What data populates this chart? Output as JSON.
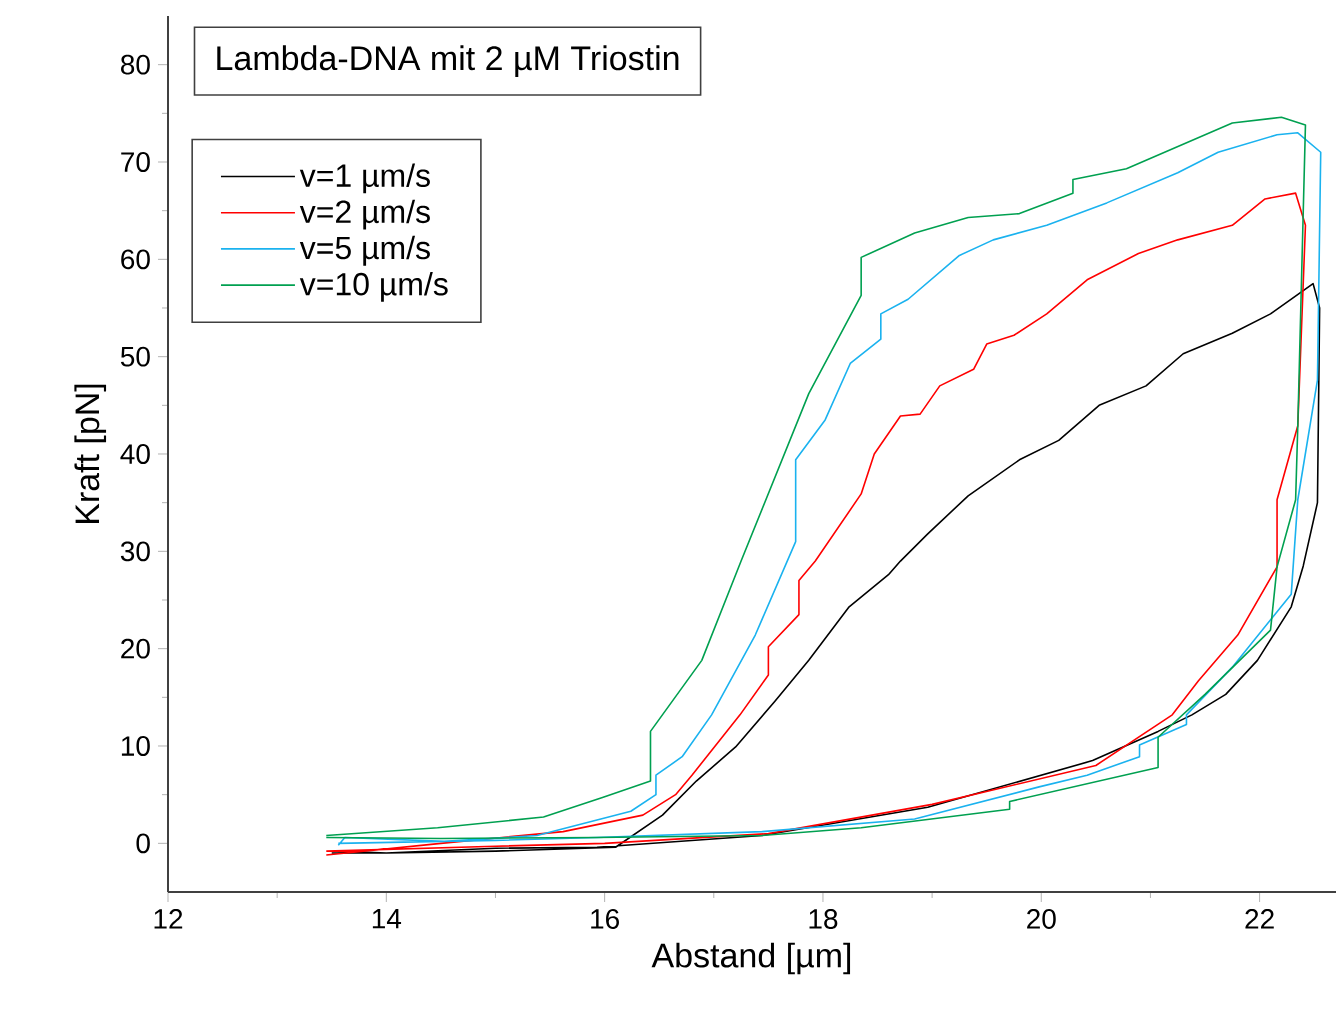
{
  "chart_data": {
    "type": "line",
    "title": "Lambda-DNA mit 2 µM Triostin",
    "xlabel": "Abstand [µm]",
    "ylabel": "Kraft [pN]",
    "xlim": [
      12,
      22.7
    ],
    "ylim": [
      -5,
      85
    ],
    "xticks": [
      12,
      14,
      16,
      18,
      20,
      22
    ],
    "yticks": [
      0,
      10,
      20,
      30,
      40,
      50,
      60,
      70,
      80
    ],
    "legend": "top left",
    "series": [
      {
        "name": "v=1 µm/s",
        "color": "#000000",
        "x": [
          13.5,
          14,
          15,
          15.93,
          17.44,
          18.96,
          20.47,
          21.07,
          21.38,
          21.69,
          21.98,
          22.29,
          22.4,
          22.53,
          22.55,
          22.49,
          22.1,
          21.75,
          21.3,
          20.96,
          20.53,
          20.16,
          19.8,
          19.33,
          18.96,
          18.71,
          18.6,
          18.24,
          17.87,
          17.56,
          17.2,
          16.84,
          16.53,
          16.1,
          15,
          14,
          13.55
        ],
        "values": [
          -1,
          -1,
          -0.5,
          -0.4,
          0.8,
          3.7,
          8.5,
          11.5,
          13.2,
          15.3,
          18.8,
          24.3,
          28.5,
          35,
          55,
          57.5,
          54.4,
          52.4,
          50.3,
          47,
          45,
          41.4,
          39.4,
          35.7,
          31.8,
          29,
          27.6,
          24.3,
          18.8,
          14.6,
          9.9,
          6.4,
          2.9,
          -0.4,
          -0.8,
          -1,
          -0.8
        ]
      },
      {
        "name": "v=2 µm/s",
        "color": "#ff0000",
        "x": [
          13.45,
          15,
          16,
          17.5,
          19,
          20.5,
          21.2,
          21.44,
          21.8,
          22.16,
          22.16,
          22.35,
          22.42,
          22.33,
          22.05,
          21.75,
          21.25,
          20.89,
          20.42,
          20.05,
          19.75,
          19.5,
          19.38,
          19.07,
          18.89,
          18.71,
          18.47,
          18.35,
          17.93,
          17.78,
          17.78,
          17.5,
          17.5,
          17.24,
          16.8,
          16.65,
          16.35,
          15.62,
          14.5,
          13.45
        ],
        "values": [
          -0.8,
          -0.3,
          0,
          1,
          4,
          8,
          13.2,
          16.7,
          21.4,
          28.4,
          35.3,
          42.9,
          63.5,
          66.8,
          66.2,
          63.5,
          62,
          60.6,
          57.9,
          54.4,
          52.2,
          51.3,
          48.7,
          47,
          44.1,
          43.9,
          40,
          35.9,
          29,
          27,
          23.5,
          20.2,
          17.3,
          13.2,
          7,
          5,
          2.9,
          1.2,
          0,
          -1.2
        ]
      },
      {
        "name": "v=5 µm/s",
        "color": "#1ab2ef",
        "x": [
          13.56,
          15,
          15.93,
          17.44,
          18.84,
          19.98,
          20.42,
          20.9,
          20.9,
          21.33,
          21.33,
          21.75,
          22.29,
          22.35,
          22.53,
          22.56,
          22.35,
          22.16,
          21.62,
          21.25,
          20.6,
          20.05,
          19.56,
          19.25,
          18.78,
          18.53,
          18.53,
          18.25,
          18.02,
          17.75,
          17.75,
          17.38,
          16.98,
          16.71,
          16.47,
          16.47,
          16.24,
          15.38,
          14.53,
          13.62,
          13.56
        ],
        "values": [
          0,
          0.3,
          0.6,
          1.2,
          2.5,
          5.8,
          7,
          8.9,
          10.1,
          12.2,
          13.2,
          18.1,
          25.6,
          35.3,
          47.6,
          71,
          73,
          72.8,
          71,
          68.9,
          65.8,
          63.5,
          62,
          60.4,
          55.9,
          54.4,
          51.8,
          49.3,
          43.5,
          39.4,
          31,
          21.4,
          13.2,
          8.9,
          7,
          5,
          3.3,
          0.8,
          0.2,
          0.6,
          -0.2
        ]
      },
      {
        "name": "v=10 µm/s",
        "color": "#00a050",
        "x": [
          13.45,
          14.5,
          15.93,
          17.44,
          18.35,
          19.71,
          19.71,
          21.07,
          21.07,
          21.5,
          22.1,
          22.16,
          22.33,
          22.35,
          22.42,
          22.2,
          21.75,
          20.78,
          20.29,
          20.29,
          19.8,
          19.33,
          18.84,
          18.35,
          18.35,
          17.87,
          17.25,
          16.89,
          16.42,
          16.42,
          15.98,
          15.44,
          14.47,
          13.45
        ],
        "values": [
          0.6,
          0.5,
          0.6,
          0.8,
          1.6,
          3.5,
          4.3,
          7.8,
          10.9,
          15.3,
          21.9,
          28.4,
          35.3,
          42.9,
          73.8,
          74.6,
          74,
          69.3,
          68.2,
          66.8,
          64.7,
          64.3,
          62.7,
          60.2,
          56.3,
          46.2,
          29,
          18.8,
          11.5,
          6.4,
          4.7,
          2.7,
          1.6,
          0.8
        ]
      }
    ]
  }
}
